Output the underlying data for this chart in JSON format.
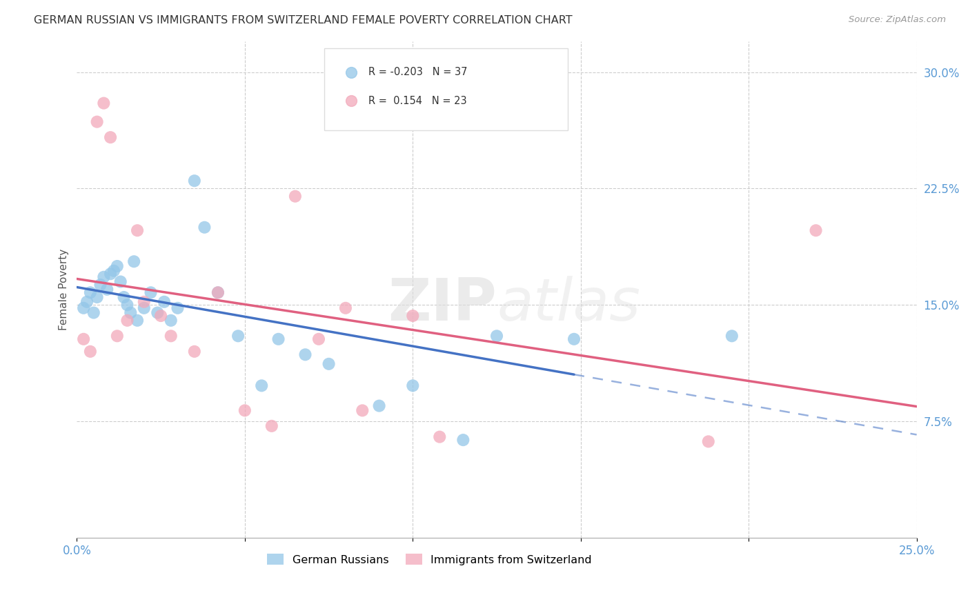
{
  "title": "GERMAN RUSSIAN VS IMMIGRANTS FROM SWITZERLAND FEMALE POVERTY CORRELATION CHART",
  "source": "Source: ZipAtlas.com",
  "ylabel": "Female Poverty",
  "xlim": [
    0.0,
    0.25
  ],
  "ylim": [
    0.0,
    0.32
  ],
  "R_blue": -0.203,
  "N_blue": 37,
  "R_pink": 0.154,
  "N_pink": 23,
  "blue_color": "#93C6E8",
  "pink_color": "#F2A8BA",
  "blue_line_color": "#4472C4",
  "pink_line_color": "#E06080",
  "watermark": "ZIPatlas",
  "blue_scatter_x": [
    0.002,
    0.003,
    0.004,
    0.005,
    0.006,
    0.007,
    0.008,
    0.009,
    0.01,
    0.011,
    0.012,
    0.013,
    0.014,
    0.015,
    0.016,
    0.017,
    0.018,
    0.02,
    0.022,
    0.024,
    0.026,
    0.028,
    0.03,
    0.035,
    0.038,
    0.042,
    0.048,
    0.055,
    0.06,
    0.068,
    0.075,
    0.09,
    0.1,
    0.115,
    0.125,
    0.148,
    0.195
  ],
  "blue_scatter_y": [
    0.148,
    0.152,
    0.158,
    0.145,
    0.155,
    0.163,
    0.168,
    0.16,
    0.17,
    0.172,
    0.175,
    0.165,
    0.155,
    0.15,
    0.145,
    0.178,
    0.14,
    0.148,
    0.158,
    0.145,
    0.152,
    0.14,
    0.148,
    0.23,
    0.2,
    0.158,
    0.13,
    0.098,
    0.128,
    0.118,
    0.112,
    0.085,
    0.098,
    0.063,
    0.13,
    0.128,
    0.13
  ],
  "pink_scatter_x": [
    0.002,
    0.004,
    0.006,
    0.008,
    0.01,
    0.012,
    0.015,
    0.018,
    0.02,
    0.025,
    0.028,
    0.035,
    0.042,
    0.05,
    0.058,
    0.065,
    0.072,
    0.08,
    0.085,
    0.1,
    0.108,
    0.188,
    0.22
  ],
  "pink_scatter_y": [
    0.128,
    0.12,
    0.268,
    0.28,
    0.258,
    0.13,
    0.14,
    0.198,
    0.152,
    0.143,
    0.13,
    0.12,
    0.158,
    0.082,
    0.072,
    0.22,
    0.128,
    0.148,
    0.082,
    0.143,
    0.065,
    0.062,
    0.198
  ]
}
